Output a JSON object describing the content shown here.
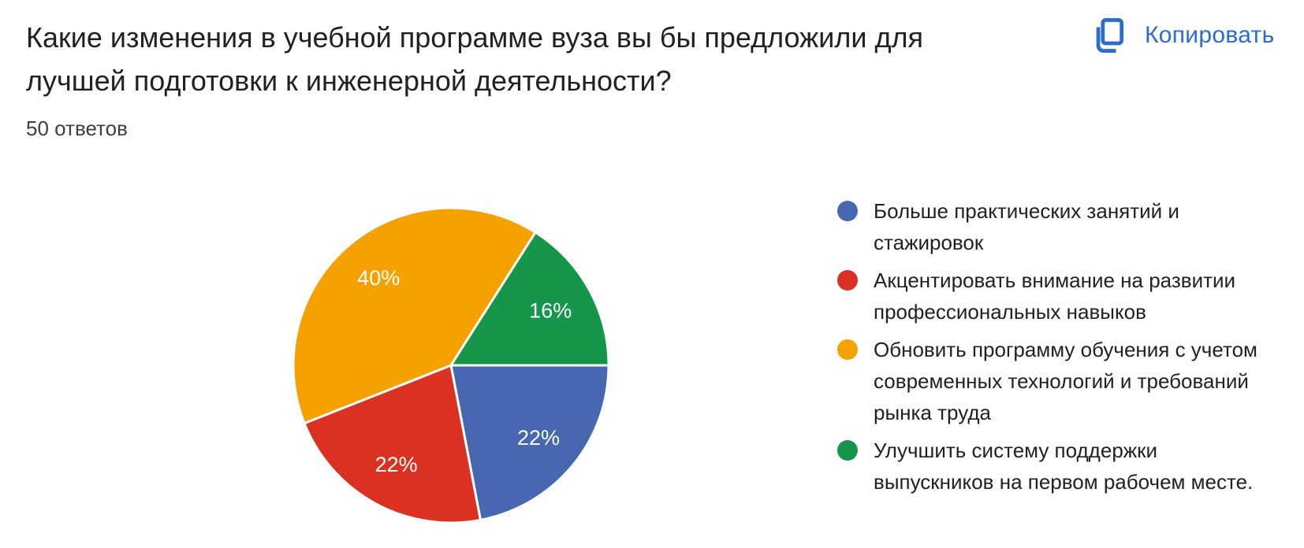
{
  "header": {
    "title": "Какие изменения в учебной программе вуза вы бы предложили для лучшей подготовки к инженерной деятельности?",
    "responses_count": "50 ответов",
    "copy_button": {
      "label": "Копировать",
      "icon": "copy-icon",
      "color": "#2b6cd0"
    }
  },
  "chart_data": {
    "type": "pie",
    "title": "Какие изменения в учебной программе вуза вы бы предложили для лучшей подготовки к инженерной деятельности?",
    "subtitle": "50 ответов",
    "legend_position": "right",
    "start_angle_deg": 0,
    "direction": "clockwise",
    "slice_separator_color": "#ffffff",
    "label_color": "#ffffff",
    "slices": [
      {
        "label": "Больше практических занятий и стажировок",
        "value_pct": 22,
        "data_label": "22%",
        "color": "#4767b0"
      },
      {
        "label": "Акцентировать внимание на развитии профессиональных навыков",
        "value_pct": 22,
        "data_label": "22%",
        "color": "#da3122"
      },
      {
        "label": "Обновить программу обучения с учетом современных технологий и требований рынка труда",
        "value_pct": 40,
        "data_label": "40%",
        "color": "#f5a201"
      },
      {
        "label": "Улучшить систему поддержки выпускников на первом рабочем месте.",
        "value_pct": 16,
        "data_label": "16%",
        "color": "#16964a"
      }
    ]
  }
}
